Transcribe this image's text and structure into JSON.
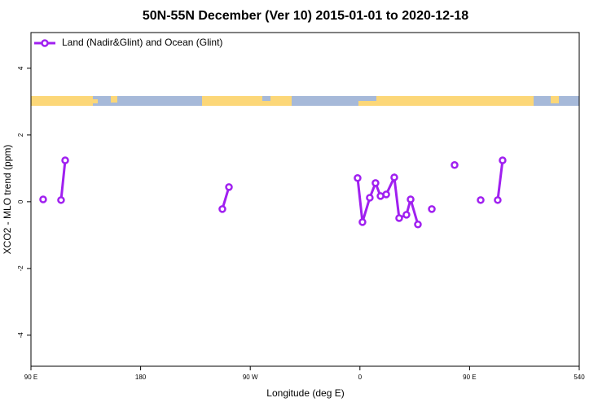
{
  "chart_data": {
    "type": "line",
    "title": "50N-55N December (Ver 10)   2015-01-01 to 2020-12-18",
    "x_label": "Longitude (deg E)",
    "y_label": "XCO2 - MLO trend (ppm)",
    "xlim": [
      90,
      540
    ],
    "xticks": [
      {
        "value": 90,
        "label": "90 E"
      },
      180,
      {
        "value": 270,
        "label": "90 W"
      },
      {
        "value": 360,
        "label": "0"
      },
      {
        "value": 450,
        "label": "90 E"
      },
      540
    ],
    "ylim": [
      -4.93,
      5.07
    ],
    "yticks": [
      -4,
      -2,
      0,
      2,
      4
    ],
    "legend": "top-left",
    "series": [
      {
        "name": "Land (Nadir&Glint) and Ocean (Glint)",
        "color": "#a020f0",
        "x": [
          100.0,
          null,
          114.7,
          118.1,
          null,
          247.1,
          252.5,
          null,
          358.1,
          362.1,
          368.1,
          372.8,
          376.9,
          381.6,
          388.2,
          392.2,
          398.2,
          401.6,
          407.6,
          null,
          419.0,
          null,
          437.7,
          null,
          459.1,
          null,
          473.1,
          477.1
        ],
        "values": [
          0.07,
          null,
          0.05,
          1.24,
          null,
          -0.22,
          0.44,
          null,
          0.71,
          -0.61,
          0.12,
          0.56,
          0.17,
          0.22,
          0.73,
          -0.49,
          -0.39,
          0.07,
          -0.68,
          null,
          -0.22,
          null,
          1.1,
          null,
          0.05,
          null,
          0.05,
          1.24
        ]
      }
    ]
  }
}
